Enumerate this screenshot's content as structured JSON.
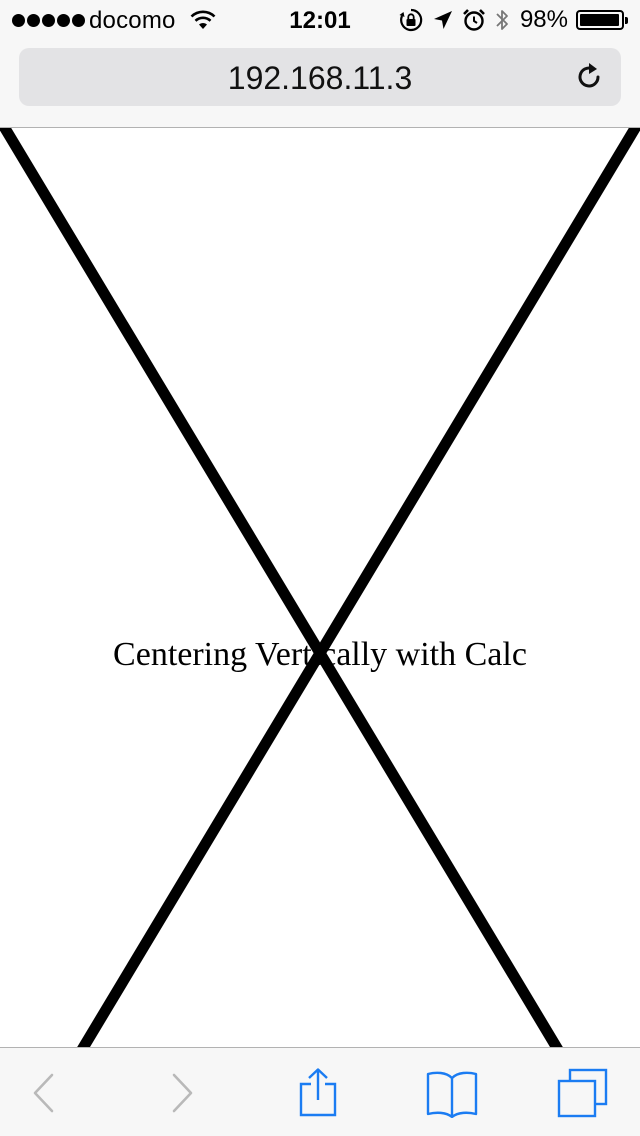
{
  "status_bar": {
    "carrier": "docomo",
    "time": "12:01",
    "battery_percent": "98%",
    "battery_level": 0.98,
    "signal_bars": 5,
    "icons": [
      "wifi-icon",
      "orientation-lock-icon",
      "location-arrow-icon",
      "alarm-icon",
      "bluetooth-icon",
      "battery-icon"
    ]
  },
  "address_bar": {
    "url": "192.168.11.3",
    "reload_icon": "reload-icon"
  },
  "page": {
    "heading": "Centering Vertically with Calc",
    "line_color": "#000000",
    "background_color": "#ffffff"
  },
  "toolbar": {
    "buttons": [
      {
        "name": "back-icon",
        "enabled": false
      },
      {
        "name": "forward-icon",
        "enabled": false
      },
      {
        "name": "share-icon",
        "enabled": true
      },
      {
        "name": "bookmarks-icon",
        "enabled": true
      },
      {
        "name": "tabs-icon",
        "enabled": true
      }
    ],
    "accent_color": "#1b7cf2",
    "disabled_color": "#b9b9b9"
  }
}
